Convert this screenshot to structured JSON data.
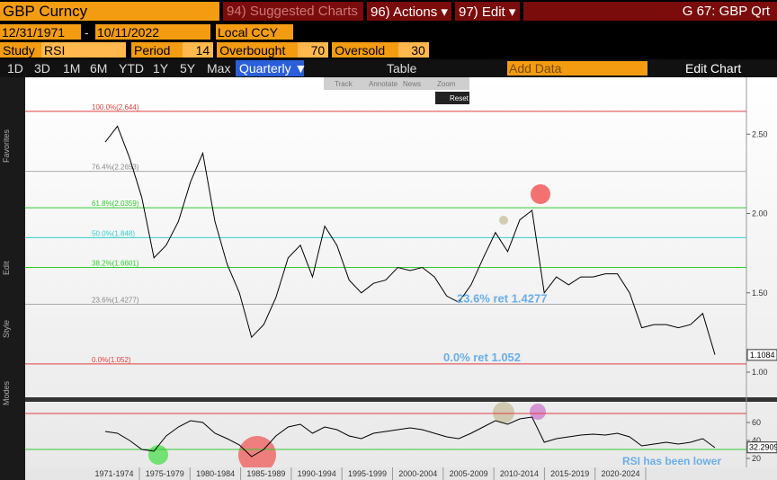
{
  "header": {
    "security": "GBP Curncy",
    "buttons": [
      "94) Suggested Charts",
      "96) Actions ▾",
      "97) Edit ▾"
    ],
    "title": "G 67: GBP Qrt"
  },
  "range": {
    "start": "12/31/1971",
    "separator": "-",
    "end": "10/11/2022",
    "currency": "Local CCY"
  },
  "study": {
    "label": "Study",
    "name": "RSI",
    "fields": [
      {
        "label": "Period",
        "value": 14
      },
      {
        "label": "Overbought",
        "value": 70
      },
      {
        "label": "Oversold",
        "value": 30
      }
    ]
  },
  "toolbar": {
    "periods": [
      "1D",
      "3D",
      "1M",
      "6M",
      "YTD",
      "1Y",
      "5Y",
      "Max"
    ],
    "frequency": "Quarterly ▼",
    "table": "Table",
    "add_data": "Add Data",
    "edit_chart": "Edit Chart"
  },
  "tools": {
    "items": [
      "Track",
      "Annotate",
      "News",
      "Zoom"
    ],
    "reset": "Reset"
  },
  "side_labels": [
    "Favorites",
    "Edit",
    "Style",
    "Modes"
  ],
  "chart": {
    "categories": [
      "1971-1974",
      "1975-1979",
      "1980-1984",
      "1985-1989",
      "1990-1994",
      "1995-1999",
      "2000-2004",
      "2005-2009",
      "2010-2014",
      "2015-2019",
      "2020-2024"
    ],
    "xlim": [
      1971,
      2023
    ],
    "ylim": [
      0.8,
      2.8
    ],
    "yticks": [
      {
        "value": 2.5,
        "label": "2.50"
      },
      {
        "value": 2,
        "label": "2.00"
      },
      {
        "value": 1.5,
        "label": "1.50"
      },
      {
        "value": 1,
        "label": "1.00"
      }
    ],
    "last_price": 1.1084,
    "fib_levels": [
      {
        "value": 2.644,
        "label": "100.0%(2.644)",
        "color": "#e04040"
      },
      {
        "value": 2.2653,
        "label": "76.4%(2.2653)",
        "color": "#aaaaaa"
      },
      {
        "value": 2.0359,
        "label": "61.8%(2.0359)",
        "color": "#33cc33"
      },
      {
        "value": 1.848,
        "label": "50.0%(1.848)",
        "color": "#33cccc"
      },
      {
        "value": 1.6601,
        "label": "38.2%(1.6601)",
        "color": "#33cc33"
      },
      {
        "value": 1.4277,
        "label": "23.6%(1.4277)",
        "color": "#aaaaaa"
      },
      {
        "value": 1.052,
        "label": "0.0%(1.052)",
        "color": "#e04040"
      }
    ],
    "annotations": [
      "23.6% ret 1.4277",
      "0.0% ret 1.052",
      "RSI has been lower"
    ],
    "price": {
      "color": "#000000",
      "x": [
        1972,
        1973,
        1974,
        1975,
        1976,
        1977,
        1978,
        1979,
        1980,
        1981,
        1982,
        1983,
        1984,
        1985,
        1986,
        1987,
        1988,
        1989,
        1990,
        1991,
        1992,
        1993,
        1994,
        1995,
        1996,
        1997,
        1998,
        1999,
        2000,
        2001,
        2002,
        2003,
        2004,
        2005,
        2006,
        2007,
        2008,
        2009,
        2010,
        2011,
        2012,
        2013,
        2014,
        2015,
        2016,
        2017,
        2018,
        2019,
        2020,
        2021,
        2022
      ],
      "values": [
        2.45,
        2.55,
        2.35,
        2.1,
        1.72,
        1.8,
        1.95,
        2.2,
        2.38,
        1.95,
        1.68,
        1.5,
        1.22,
        1.3,
        1.47,
        1.72,
        1.8,
        1.6,
        1.92,
        1.8,
        1.58,
        1.5,
        1.56,
        1.58,
        1.66,
        1.64,
        1.66,
        1.6,
        1.48,
        1.44,
        1.55,
        1.72,
        1.88,
        1.76,
        1.96,
        2.02,
        1.5,
        1.6,
        1.55,
        1.6,
        1.6,
        1.62,
        1.62,
        1.5,
        1.28,
        1.3,
        1.3,
        1.28,
        1.3,
        1.37,
        1.11
      ]
    },
    "rsi": {
      "color": "#000000",
      "ylim": [
        10,
        80
      ],
      "yticks": [
        60,
        40,
        20
      ],
      "last": 32.2909,
      "values": [
        50,
        48,
        40,
        30,
        28,
        45,
        55,
        62,
        60,
        48,
        42,
        35,
        22,
        30,
        45,
        55,
        58,
        48,
        55,
        52,
        45,
        42,
        48,
        50,
        52,
        54,
        52,
        48,
        44,
        42,
        48,
        55,
        62,
        58,
        64,
        66,
        38,
        42,
        44,
        46,
        47,
        46,
        48,
        44,
        34,
        36,
        38,
        36,
        38,
        42,
        32
      ]
    }
  }
}
